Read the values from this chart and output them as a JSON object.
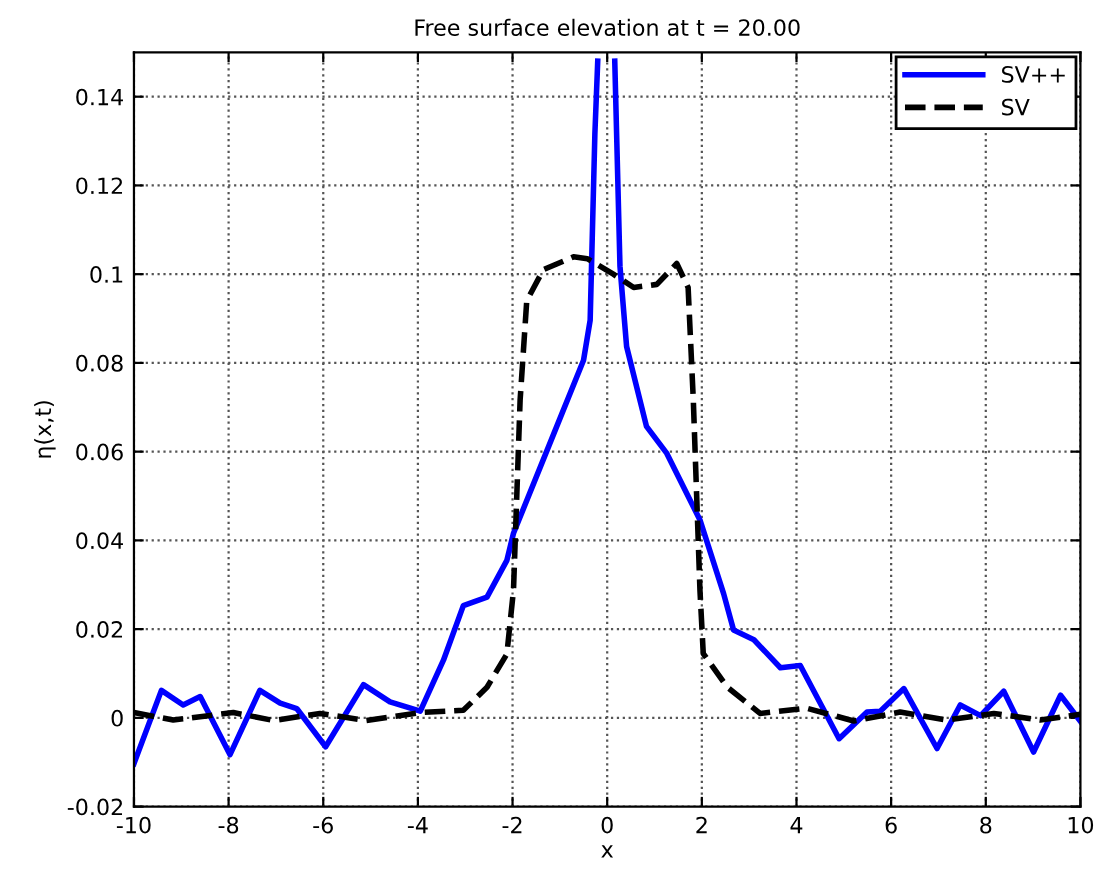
{
  "chart_data": {
    "type": "line",
    "title": "Free surface elevation at t = 20.00",
    "xlabel": "x",
    "ylabel": "η(x,t)",
    "xlim": [
      -10,
      10
    ],
    "ylim": [
      -0.02,
      0.15
    ],
    "xticks": [
      -10,
      -8,
      -6,
      -4,
      -2,
      0,
      2,
      4,
      6,
      8,
      10
    ],
    "yticks": [
      -0.02,
      0,
      0.02,
      0.04,
      0.06,
      0.08,
      0.1,
      0.12,
      0.14
    ],
    "grid": true,
    "legend": "top right",
    "series": [
      {
        "name": "SV++",
        "color": "#0000ff",
        "line_style": "solid",
        "x": [
          -10,
          -9.42,
          -8.96,
          -8.6,
          -7.97,
          -7.34,
          -6.91,
          -6.56,
          -5.95,
          -5.15,
          -4.59,
          -3.95,
          -3.46,
          -3.04,
          -2.54,
          -2.12,
          -1.98,
          -1.13,
          -0.5,
          -0.36,
          -0.26,
          -0.2,
          0,
          0.16,
          0.27,
          0.41,
          0.83,
          1.26,
          1.96,
          2.46,
          2.67,
          3.1,
          3.66,
          4.08,
          4.9,
          5.49,
          5.77,
          6.27,
          6.97,
          7.46,
          7.89,
          8.38,
          9.01,
          9.58,
          10
        ],
        "values": [
          -0.0103,
          0.0062,
          0.0029,
          0.0048,
          -0.0083,
          0.0062,
          0.0033,
          0.0021,
          -0.0065,
          0.0075,
          0.0036,
          0.0015,
          0.013,
          0.0253,
          0.0272,
          0.0355,
          0.0416,
          0.064,
          0.0806,
          0.0896,
          0.1317,
          0.148,
          null,
          0.148,
          0.1018,
          0.0837,
          0.0657,
          0.0596,
          0.0446,
          0.028,
          0.0198,
          0.0176,
          0.0113,
          0.0118,
          -0.0047,
          0.0013,
          0.0015,
          0.0066,
          -0.0069,
          0.0029,
          0.0005,
          0.006,
          -0.0077,
          0.0051,
          -0.0008
        ]
      },
      {
        "name": "SV",
        "color": "#000000",
        "line_style": "dashed",
        "x": [
          -10,
          -9.17,
          -7.9,
          -7.05,
          -6.07,
          -5.09,
          -3.95,
          -3.04,
          -2.54,
          -2.12,
          -1.98,
          -1.84,
          -1.7,
          -1.35,
          -0.71,
          -0.42,
          0.13,
          0.56,
          1.05,
          1.47,
          1.71,
          1.82,
          1.96,
          2.03,
          2.53,
          3.23,
          4.21,
          5.21,
          6.19,
          7.18,
          8.17,
          9.15,
          10
        ],
        "values": [
          0.0012,
          -0.0005,
          0.0012,
          -0.0006,
          0.001,
          -0.0006,
          0.0012,
          0.0017,
          0.0069,
          0.0144,
          0.0288,
          0.0716,
          0.094,
          0.101,
          0.1039,
          0.1035,
          0.1,
          0.097,
          0.0977,
          0.1024,
          0.097,
          0.0716,
          0.0288,
          0.0145,
          0.007,
          0.001,
          0.0022,
          -0.0007,
          0.0013,
          -0.0005,
          0.001,
          -0.0005,
          0.0008
        ]
      }
    ]
  }
}
